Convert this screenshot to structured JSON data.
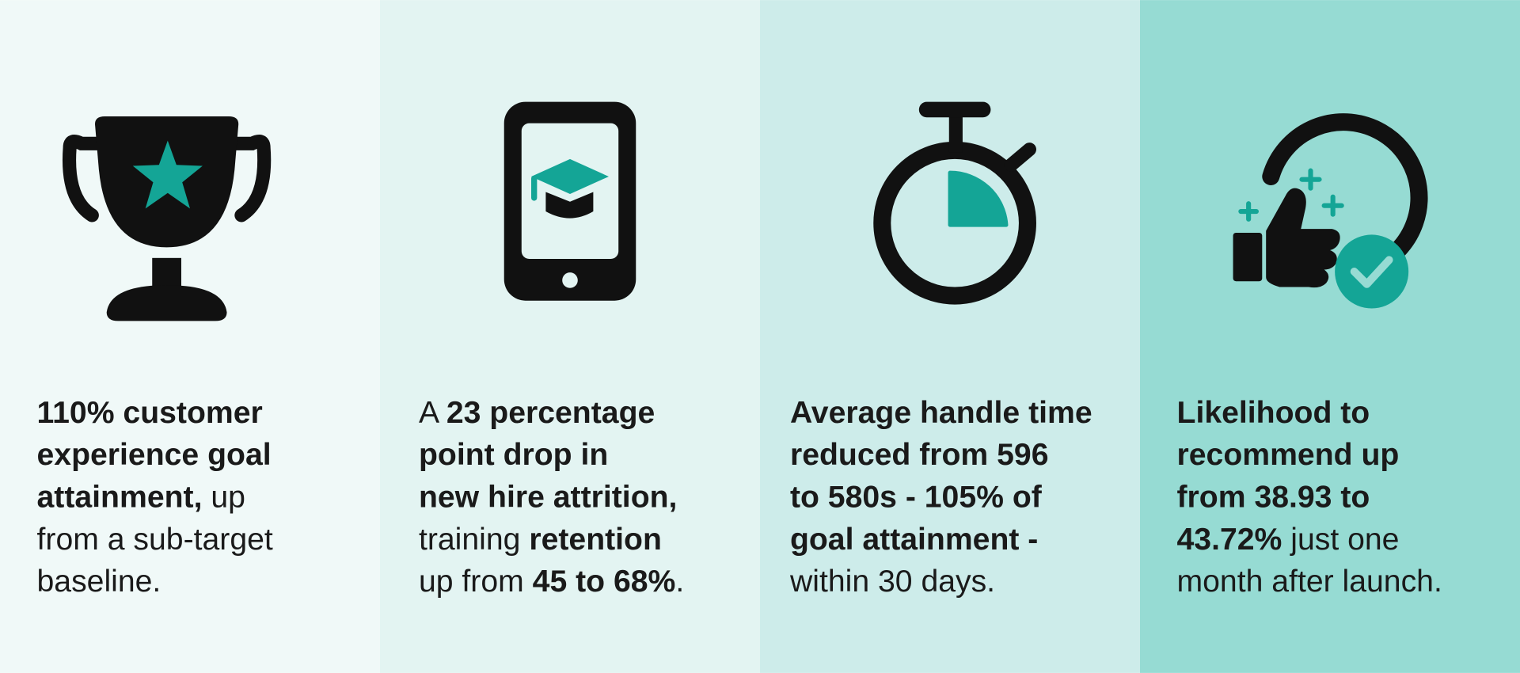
{
  "panels": [
    {
      "lines": [
        [
          {
            "text": "110% customer",
            "bold": true
          }
        ],
        [
          {
            "text": "experience goal",
            "bold": true
          }
        ],
        [
          {
            "text": "attainment,",
            "bold": true
          },
          {
            "text": " up",
            "bold": false
          }
        ],
        [
          {
            "text": "from a sub-target",
            "bold": false
          }
        ],
        [
          {
            "text": "baseline.",
            "bold": false
          }
        ]
      ]
    },
    {
      "lines": [
        [
          {
            "text": "A ",
            "bold": false
          },
          {
            "text": "23 percentage",
            "bold": true
          }
        ],
        [
          {
            "text": "point drop in",
            "bold": true
          }
        ],
        [
          {
            "text": "new hire attrition,",
            "bold": true
          }
        ],
        [
          {
            "text": "training ",
            "bold": false
          },
          {
            "text": "retention",
            "bold": true
          }
        ],
        [
          {
            "text": "up from ",
            "bold": false
          },
          {
            "text": "45 to 68%",
            "bold": true
          },
          {
            "text": ".",
            "bold": false
          }
        ]
      ]
    },
    {
      "lines": [
        [
          {
            "text": "Average handle time",
            "bold": true
          }
        ],
        [
          {
            "text": "reduced from 596",
            "bold": true
          }
        ],
        [
          {
            "text": "to 580s - 105% of",
            "bold": true
          }
        ],
        [
          {
            "text": "goal attainment -",
            "bold": true
          }
        ],
        [
          {
            "text": "within 30 days.",
            "bold": false
          }
        ]
      ]
    },
    {
      "lines": [
        [
          {
            "text": "Likelihood to",
            "bold": true
          }
        ],
        [
          {
            "text": "recommend up",
            "bold": true
          }
        ],
        [
          {
            "text": "from 38.93 to",
            "bold": true
          }
        ],
        [
          {
            "text": "43.72%",
            "bold": true
          },
          {
            "text": " just one",
            "bold": false
          }
        ],
        [
          {
            "text": "month after launch.",
            "bold": false
          }
        ]
      ]
    }
  ]
}
